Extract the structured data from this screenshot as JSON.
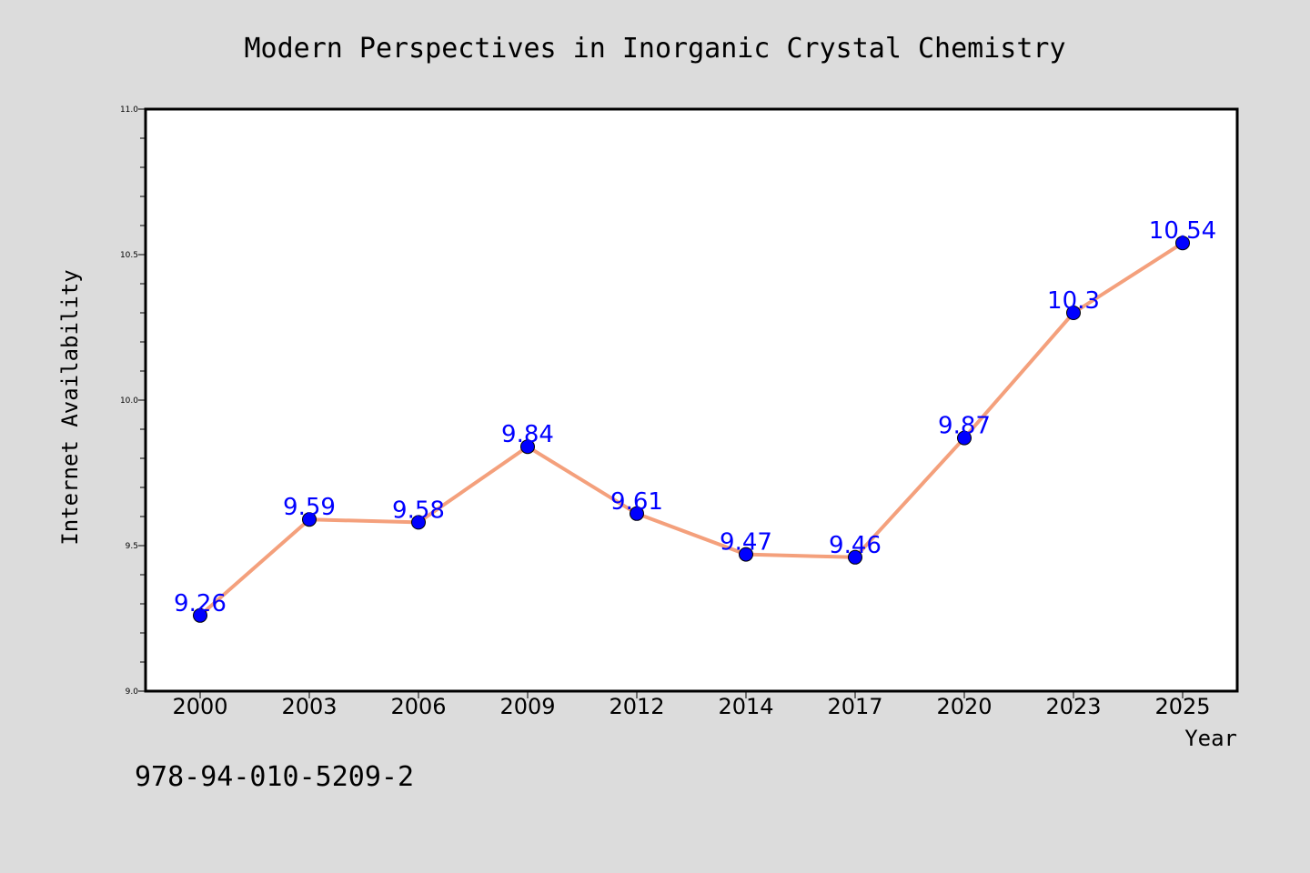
{
  "isbn": "978-94-010-5209-2",
  "colors": {
    "background": "#dcdcdc",
    "plot_area": "#ffffff",
    "line": "#f4a07c",
    "marker": "#0000ff",
    "data_label": "#0000ff"
  },
  "chart_data": {
    "type": "line",
    "title": "Modern Perspectives in Inorganic Crystal Chemistry",
    "xlabel": "Year",
    "ylabel": "Internet Availability",
    "categories": [
      "2000",
      "2003",
      "2006",
      "2009",
      "2012",
      "2014",
      "2017",
      "2020",
      "2023",
      "2025"
    ],
    "series": [
      {
        "values": [
          9.26,
          9.59,
          9.58,
          9.84,
          9.61,
          9.47,
          9.46,
          9.87,
          10.3,
          10.54
        ],
        "labels": [
          "9.26",
          "9.59",
          "9.58",
          "9.84",
          "9.61",
          "9.47",
          "9.46",
          "9.87",
          "10.3",
          "10.54"
        ]
      }
    ],
    "ylim": [
      9.0,
      11.0
    ],
    "yticks": [
      "9.0",
      "9.5",
      "10.0",
      "10.5",
      "11.0"
    ],
    "grid": false,
    "legend": "none"
  }
}
